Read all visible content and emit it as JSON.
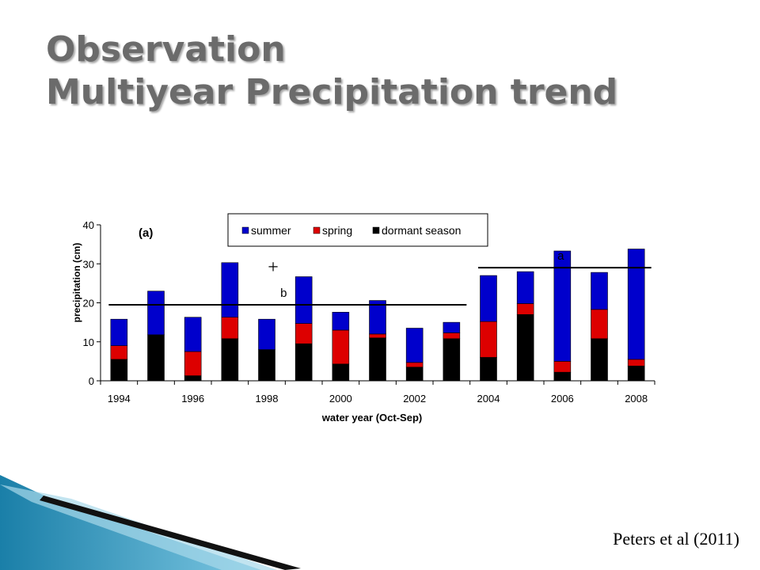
{
  "slide": {
    "title_line1": "Observation",
    "title_line2": "Multiyear Precipitation trend",
    "citation": "Peters et al (2011)"
  },
  "colors": {
    "summer": "#0000cc",
    "spring": "#dd0000",
    "dormant": "#000000",
    "title": "#6b6b6b",
    "deco_teal": "#1a7fa8",
    "deco_light": "#7ec8e3"
  },
  "chart_data": {
    "type": "bar",
    "stacked": true,
    "panel_label": "(a)",
    "xlabel": "water year (Oct-Sep)",
    "ylabel": "precipitation (cm)",
    "ylim": [
      0,
      40
    ],
    "yticks": [
      "0",
      "10",
      "20",
      "30",
      "40"
    ],
    "x": [
      1994,
      1995,
      1996,
      1997,
      1998,
      1999,
      2000,
      2001,
      2002,
      2003,
      2004,
      2005,
      2006,
      2007,
      2008
    ],
    "xtick_labels": [
      "1994",
      "1996",
      "1998",
      "2000",
      "2002",
      "2004",
      "2006",
      "2008"
    ],
    "legend_position": "top",
    "series": [
      {
        "name": "dormant season",
        "values": [
          5.5,
          11.8,
          1.3,
          10.8,
          8.0,
          9.5,
          4.3,
          11.0,
          3.5,
          10.8,
          6.0,
          17.0,
          2.2,
          10.8,
          3.8
        ]
      },
      {
        "name": "spring",
        "values": [
          3.5,
          0.0,
          6.2,
          5.5,
          0.0,
          5.2,
          8.7,
          1.0,
          1.2,
          1.5,
          9.2,
          2.8,
          2.8,
          7.5,
          1.7
        ]
      },
      {
        "name": "summer",
        "values": [
          6.8,
          11.2,
          8.8,
          14.0,
          7.8,
          12.0,
          4.6,
          8.6,
          8.8,
          2.7,
          11.8,
          8.2,
          28.3,
          9.5,
          28.3
        ]
      }
    ],
    "legend_order": [
      "summer",
      "spring",
      "dormant season"
    ],
    "annotations": [
      {
        "text": "b",
        "x_from": 1994,
        "x_to": 2003,
        "y": 19.5
      },
      {
        "text": "a",
        "x_from": 2004,
        "x_to": 2008,
        "y": 29.0
      },
      {
        "text": "+"
      }
    ]
  }
}
